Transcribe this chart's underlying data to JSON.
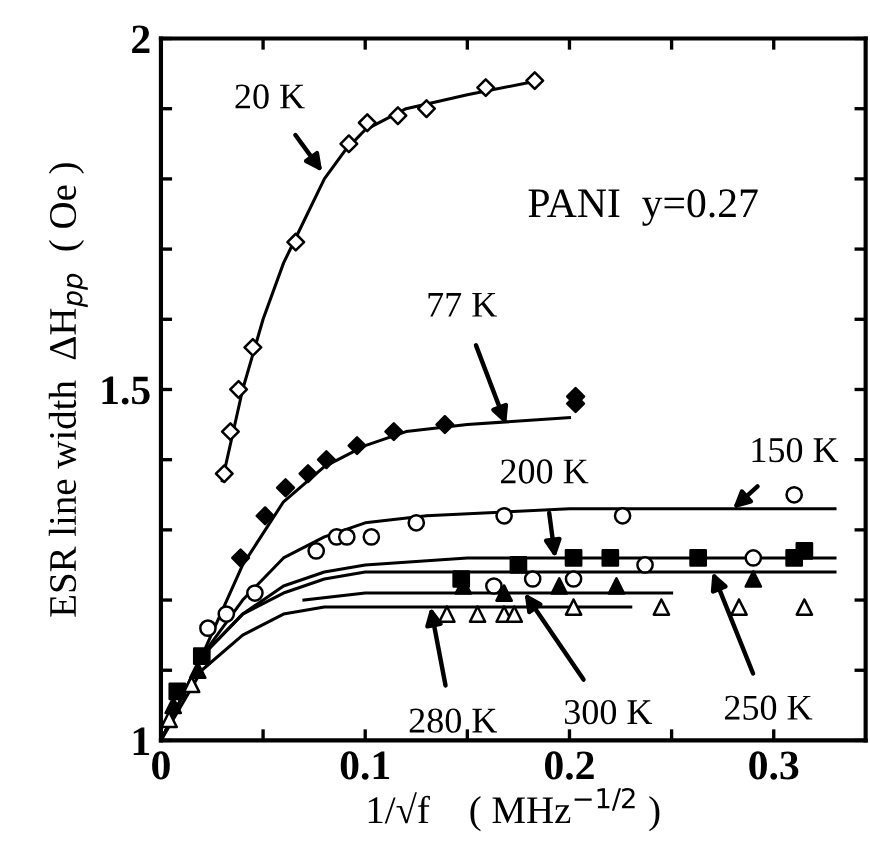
{
  "chart_data": {
    "type": "scatter",
    "xlabel": "1/√f    ( MHz$^{−1/2}$ )",
    "ylabel": "ESR line width  ΔH$_{pp}$  ( Oe )",
    "xlim": [
      0,
      0.345
    ],
    "ylim": [
      1,
      2
    ],
    "xticks": [
      0,
      {
        "value": 0.05,
        "label": null
      },
      0.1,
      {
        "value": 0.15,
        "label": null
      },
      0.2,
      {
        "value": 0.25,
        "label": null
      },
      0.3
    ],
    "yticks": [
      1,
      {
        "value": 1.1,
        "label": null
      },
      {
        "value": 1.2,
        "label": null
      },
      {
        "value": 1.3,
        "label": null
      },
      {
        "value": 1.4,
        "label": null
      },
      1.5,
      {
        "value": 1.6,
        "label": null
      },
      {
        "value": 1.7,
        "label": null
      },
      {
        "value": 1.8,
        "label": null
      },
      {
        "value": 1.9,
        "label": null
      },
      2
    ],
    "grid": false,
    "legend": false,
    "series": [
      {
        "marker": "diamond",
        "color": "#ffffff",
        "x": [
          0.031,
          0.034,
          0.038,
          0.045,
          0.066,
          0.092,
          0.101,
          0.116,
          0.13,
          0.159,
          0.183
        ],
        "values": [
          1.38,
          1.44,
          1.5,
          1.56,
          1.71,
          1.85,
          1.88,
          1.89,
          1.9,
          1.93,
          1.94
        ]
      },
      {
        "marker": "diamond",
        "color": "#000000",
        "x": [
          0.039,
          0.051,
          0.061,
          0.072,
          0.081,
          0.096,
          0.114,
          0.139,
          0.203,
          0.203
        ],
        "values": [
          1.26,
          1.32,
          1.36,
          1.38,
          1.4,
          1.42,
          1.44,
          1.45,
          1.49,
          1.48
        ]
      },
      {
        "marker": "circle",
        "color": "#ffffff",
        "x": [
          0.023,
          0.032,
          0.046,
          0.076,
          0.086,
          0.091,
          0.103,
          0.125,
          0.168,
          0.226,
          0.31
        ],
        "values": [
          1.16,
          1.18,
          1.21,
          1.27,
          1.29,
          1.29,
          1.29,
          1.31,
          1.32,
          1.32,
          1.35
        ]
      },
      {
        "marker": "square",
        "color": "#000000",
        "x": [
          0.008,
          0.02,
          0.147,
          0.175,
          0.202,
          0.22,
          0.263,
          0.31,
          0.315
        ],
        "values": [
          1.07,
          1.12,
          1.23,
          1.25,
          1.26,
          1.26,
          1.26,
          1.26,
          1.27
        ]
      },
      {
        "marker": "circle",
        "color": "#ffffff",
        "x": [
          0.163,
          0.182,
          0.202,
          0.237,
          0.29
        ],
        "values": [
          1.22,
          1.23,
          1.23,
          1.25,
          1.26
        ]
      },
      {
        "marker": "triangle",
        "color": "#000000",
        "x": [
          0.006,
          0.018,
          0.148,
          0.168,
          0.195,
          0.223,
          0.29
        ],
        "values": [
          1.05,
          1.1,
          1.22,
          1.21,
          1.22,
          1.22,
          1.23
        ]
      },
      {
        "marker": "triangle",
        "color": "#ffffff",
        "x": [
          0.004,
          0.015,
          0.14,
          0.155,
          0.168,
          0.173,
          0.202,
          0.245,
          0.283,
          0.315
        ],
        "values": [
          1.03,
          1.08,
          1.18,
          1.18,
          1.18,
          1.18,
          1.19,
          1.19,
          1.19,
          1.19
        ]
      },
      {
        "type": "line",
        "color": "#000000",
        "x": [
          0.03,
          0.04,
          0.05,
          0.06,
          0.07,
          0.08,
          0.09,
          0.1,
          0.12,
          0.15,
          0.185
        ],
        "values": [
          1.37,
          1.5,
          1.6,
          1.68,
          1.74,
          1.8,
          1.84,
          1.87,
          1.9,
          1.92,
          1.94
        ]
      },
      {
        "type": "line",
        "color": "#000000",
        "x": [
          0,
          0.02,
          0.04,
          0.06,
          0.08,
          0.1,
          0.12,
          0.15,
          0.2
        ],
        "values": [
          1.0,
          1.12,
          1.25,
          1.34,
          1.39,
          1.42,
          1.44,
          1.45,
          1.46
        ]
      },
      {
        "type": "line",
        "color": "#000000",
        "x": [
          0,
          0.02,
          0.04,
          0.06,
          0.08,
          0.1,
          0.13,
          0.2,
          0.33
        ],
        "values": [
          1.0,
          1.12,
          1.2,
          1.26,
          1.29,
          1.31,
          1.32,
          1.33,
          1.33
        ]
      },
      {
        "type": "line",
        "color": "#000000",
        "x": [
          0,
          0.02,
          0.04,
          0.06,
          0.08,
          0.1,
          0.15,
          0.33
        ],
        "values": [
          1.0,
          1.12,
          1.18,
          1.22,
          1.24,
          1.25,
          1.26,
          1.26
        ]
      },
      {
        "type": "line",
        "color": "#000000",
        "x": [
          0,
          0.02,
          0.04,
          0.06,
          0.08,
          0.1,
          0.33
        ],
        "values": [
          1.0,
          1.12,
          1.18,
          1.21,
          1.23,
          1.24,
          1.24
        ]
      },
      {
        "type": "line",
        "color": "#000000",
        "x": [
          0.07,
          0.1,
          0.25
        ],
        "values": [
          1.2,
          1.21,
          1.21
        ]
      },
      {
        "type": "line",
        "color": "#000000",
        "x": [
          0,
          0.02,
          0.04,
          0.06,
          0.08,
          0.23
        ],
        "values": [
          1.0,
          1.1,
          1.15,
          1.18,
          1.19,
          1.19
        ]
      }
    ],
    "annotations": [
      {
        "text": "20 K",
        "x": 0.079,
        "y": 1.81
      },
      {
        "text": "77 K",
        "x": 0.169,
        "y": 1.45
      },
      {
        "text": "150 K",
        "x": 0.28,
        "y": 1.33
      },
      {
        "text": "200 K",
        "x": 0.193,
        "y": 1.26
      },
      {
        "text": "280 K",
        "x": 0.132,
        "y": 1.19
      },
      {
        "text": "300 K",
        "x": 0.178,
        "y": 1.21
      },
      {
        "text": "250 K",
        "x": 0.27,
        "y": 1.24
      },
      "PANI  y=0.27"
    ]
  }
}
